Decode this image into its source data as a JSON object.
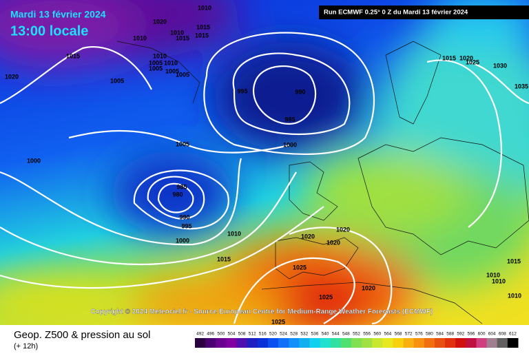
{
  "header": {
    "date": "Mardi 13 février 2024",
    "time": "13:00 locale",
    "run": "Run ECMWF 0.25° 0 Z du Mardi 13 février 2024"
  },
  "copyright": "Copyright © 2024 Meteociel.fr - Source European Centre for Medium-Range Weather Forecasts (ECMWF)",
  "footer": {
    "title": "Geop. Z500 & pression au sol",
    "lead": "(+ 12h)"
  },
  "scale": {
    "labels": [
      492,
      496,
      500,
      504,
      508,
      512,
      516,
      520,
      524,
      528,
      532,
      536,
      540,
      544,
      548,
      552,
      556,
      560,
      564,
      568,
      572,
      576,
      580,
      584,
      588,
      592,
      596,
      600,
      604,
      608,
      612
    ]
  },
  "isobar_labels": [
    "1010",
    "1020",
    "1015",
    "1010",
    "1015",
    "1015",
    "1015",
    "1010",
    "1010",
    "1005",
    "1010",
    "1005",
    "1005",
    "1005",
    "1020",
    "1005",
    "995",
    "990",
    "985",
    "1005",
    "1000",
    "1000",
    "985",
    "980",
    "990",
    "995",
    "1010",
    "1000",
    "1015",
    "1020",
    "1020",
    "1020",
    "1025",
    "1020",
    "1025",
    "1025",
    "1015",
    "1020",
    "1025",
    "1030",
    "1035",
    "1015",
    "1010",
    "1010",
    "1010"
  ]
}
